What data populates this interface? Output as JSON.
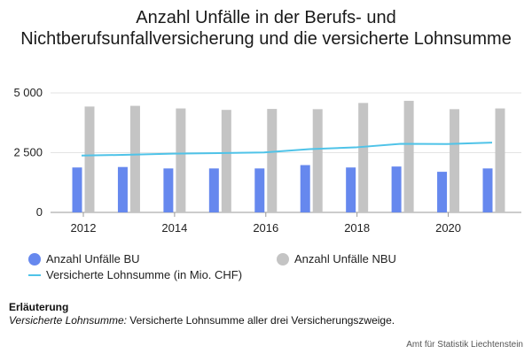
{
  "chart_data": {
    "type": "bar",
    "title": "Anzahl Unfälle in der Berufs- und Nichtberufsunfallversicherung und die versicherte Lohnsumme",
    "x": [
      2012,
      2013,
      2014,
      2015,
      2016,
      2017,
      2018,
      2019,
      2020,
      2021
    ],
    "xticks": [
      "2012",
      "2014",
      "2016",
      "2018",
      "2020"
    ],
    "yticks": [
      "0",
      "2 500",
      "5 000"
    ],
    "ylim": [
      0,
      5000
    ],
    "grid": true,
    "legend_position": "bottom",
    "series": [
      {
        "name": "Anzahl Unfälle BU",
        "kind": "bar",
        "color": "#6688ee",
        "values": [
          1880,
          1900,
          1840,
          1840,
          1840,
          1980,
          1880,
          1920,
          1700,
          1840
        ]
      },
      {
        "name": "Anzahl Unfälle NBU",
        "kind": "bar",
        "color": "#c4c4c4",
        "values": [
          4430,
          4460,
          4350,
          4290,
          4330,
          4320,
          4580,
          4670,
          4320,
          4350
        ]
      },
      {
        "name": "Versicherte Lohnsumme (in Mio. CHF)",
        "kind": "line",
        "color": "#4fc3e8",
        "values": [
          2380,
          2410,
          2460,
          2480,
          2510,
          2650,
          2720,
          2870,
          2860,
          2920
        ]
      }
    ]
  },
  "note": {
    "title": "Erläuterung",
    "label": "Versicherte Lohnsumme:",
    "text": " Versicherte Lohnsumme aller drei Versicherungszweige."
  },
  "source": "Amt für Statistik Liechtenstein"
}
